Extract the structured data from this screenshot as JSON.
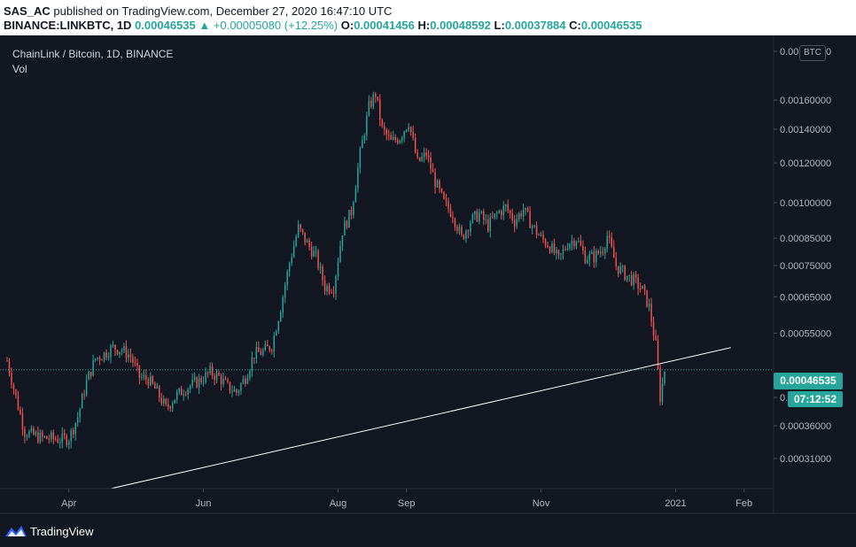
{
  "header": {
    "user": "SAS_AC",
    "published_text": "published on TradingView.com, December 27, 2020 16:47:10 UTC",
    "symbol": "BINANCE:LINKBTC, 1D",
    "last": "0.00046535",
    "arrow": "▲",
    "change": "+0.00005080 (+12.25%)",
    "open_label": "O:",
    "open": "0.00041456",
    "high_label": "H:",
    "high": "0.00048592",
    "low_label": "L:",
    "low": "0.00037884",
    "close_label": "C:",
    "close": "0.00046535"
  },
  "legend": {
    "title": "ChainLink / Bitcoin, 1D, BINANCE",
    "volume": "Vol"
  },
  "price_scale": {
    "currency": "BTC",
    "current_price": "0.00046535",
    "countdown": "07:12:52"
  },
  "footer": {
    "brand": "TradingView"
  },
  "colors": {
    "background": "#131722",
    "up": "#26a69a",
    "down": "#ef5350",
    "trendline": "#ffffff",
    "grid": "#1e222d",
    "text": "#d1d4dc"
  },
  "icons": {
    "brand_logo": "tradingview-logo-icon"
  },
  "chart_data": {
    "type": "candlestick",
    "title": "ChainLink / Bitcoin, 1D, BINANCE",
    "y_scale": "log",
    "ylim": [
      0.00027,
      0.0021
    ],
    "xlim": [
      "2020-03-04",
      "2021-02-14"
    ],
    "y_ticks": [
      "0.00200000",
      "0.00160000",
      "0.00140000",
      "0.00120000",
      "0.00100000",
      "0.00085000",
      "0.00075000",
      "0.00065000",
      "0.00055000",
      "0.00041000",
      "0.00036000",
      "0.00031000"
    ],
    "x_ticks": [
      {
        "label": "Apr",
        "date": "2020-04-01"
      },
      {
        "label": "Jun",
        "date": "2020-06-01"
      },
      {
        "label": "Aug",
        "date": "2020-08-01"
      },
      {
        "label": "Sep",
        "date": "2020-09-01"
      },
      {
        "label": "Nov",
        "date": "2020-11-01"
      },
      {
        "label": "2021",
        "date": "2021-01-01"
      },
      {
        "label": "Feb",
        "date": "2021-02-01"
      }
    ],
    "grid": false,
    "current_price_line": 0.00046535,
    "trendline": {
      "start": [
        "2020-04-20",
        0.00027
      ],
      "end": [
        "2021-01-26",
        0.000515
      ]
    },
    "price_path": [
      [
        "2020-03-04",
        0.000485
      ],
      [
        "2020-03-08",
        0.00041
      ],
      [
        "2020-03-12",
        0.00035
      ],
      [
        "2020-03-16",
        0.000345
      ],
      [
        "2020-03-20",
        0.00034
      ],
      [
        "2020-03-24",
        0.00034
      ],
      [
        "2020-03-28",
        0.000338
      ],
      [
        "2020-04-01",
        0.00034
      ],
      [
        "2020-04-05",
        0.000375
      ],
      [
        "2020-04-09",
        0.00044
      ],
      [
        "2020-04-13",
        0.00049
      ],
      [
        "2020-04-17",
        0.0005
      ],
      [
        "2020-04-21",
        0.000515
      ],
      [
        "2020-04-25",
        0.00051
      ],
      [
        "2020-04-29",
        0.000495
      ],
      [
        "2020-05-03",
        0.00045
      ],
      [
        "2020-05-07",
        0.000445
      ],
      [
        "2020-05-11",
        0.00042
      ],
      [
        "2020-05-15",
        0.00039
      ],
      [
        "2020-05-19",
        0.00041
      ],
      [
        "2020-05-23",
        0.000425
      ],
      [
        "2020-05-27",
        0.000435
      ],
      [
        "2020-05-31",
        0.000445
      ],
      [
        "2020-06-04",
        0.00046
      ],
      [
        "2020-06-08",
        0.00045
      ],
      [
        "2020-06-12",
        0.00043
      ],
      [
        "2020-06-16",
        0.00042
      ],
      [
        "2020-06-20",
        0.00045
      ],
      [
        "2020-06-24",
        0.0005
      ],
      [
        "2020-06-28",
        0.000505
      ],
      [
        "2020-07-02",
        0.00052
      ],
      [
        "2020-07-06",
        0.00062
      ],
      [
        "2020-07-10",
        0.00076
      ],
      [
        "2020-07-14",
        0.00089
      ],
      [
        "2020-07-18",
        0.00083
      ],
      [
        "2020-07-22",
        0.00078
      ],
      [
        "2020-07-26",
        0.00068
      ],
      [
        "2020-07-30",
        0.00068
      ],
      [
        "2020-08-03",
        0.00088
      ],
      [
        "2020-08-07",
        0.00096
      ],
      [
        "2020-08-11",
        0.00125
      ],
      [
        "2020-08-15",
        0.00155
      ],
      [
        "2020-08-18",
        0.00165
      ],
      [
        "2020-08-21",
        0.0014
      ],
      [
        "2020-08-25",
        0.00132
      ],
      [
        "2020-08-29",
        0.00135
      ],
      [
        "2020-09-02",
        0.00145
      ],
      [
        "2020-09-06",
        0.0012
      ],
      [
        "2020-09-10",
        0.00125
      ],
      [
        "2020-09-14",
        0.0011
      ],
      [
        "2020-09-18",
        0.001
      ],
      [
        "2020-09-22",
        0.00095
      ],
      [
        "2020-09-26",
        0.00085
      ],
      [
        "2020-09-30",
        0.00092
      ],
      [
        "2020-10-04",
        0.00095
      ],
      [
        "2020-10-08",
        0.0009
      ],
      [
        "2020-10-12",
        0.00095
      ],
      [
        "2020-10-16",
        0.00098
      ],
      [
        "2020-10-20",
        0.00092
      ],
      [
        "2020-10-24",
        0.00097
      ],
      [
        "2020-10-28",
        0.0009
      ],
      [
        "2020-11-01",
        0.00085
      ],
      [
        "2020-11-05",
        0.00082
      ],
      [
        "2020-11-09",
        0.00077
      ],
      [
        "2020-11-13",
        0.00083
      ],
      [
        "2020-11-17",
        0.00085
      ],
      [
        "2020-11-21",
        0.00078
      ],
      [
        "2020-11-25",
        0.00078
      ],
      [
        "2020-11-29",
        0.00081
      ],
      [
        "2020-12-01",
        0.00086
      ],
      [
        "2020-12-05",
        0.00075
      ],
      [
        "2020-12-09",
        0.00072
      ],
      [
        "2020-12-13",
        0.0007
      ],
      [
        "2020-12-17",
        0.00067
      ],
      [
        "2020-12-20",
        0.00062
      ],
      [
        "2020-12-23",
        0.00052
      ],
      [
        "2020-12-25",
        0.00041
      ],
      [
        "2020-12-27",
        0.000465
      ]
    ]
  }
}
